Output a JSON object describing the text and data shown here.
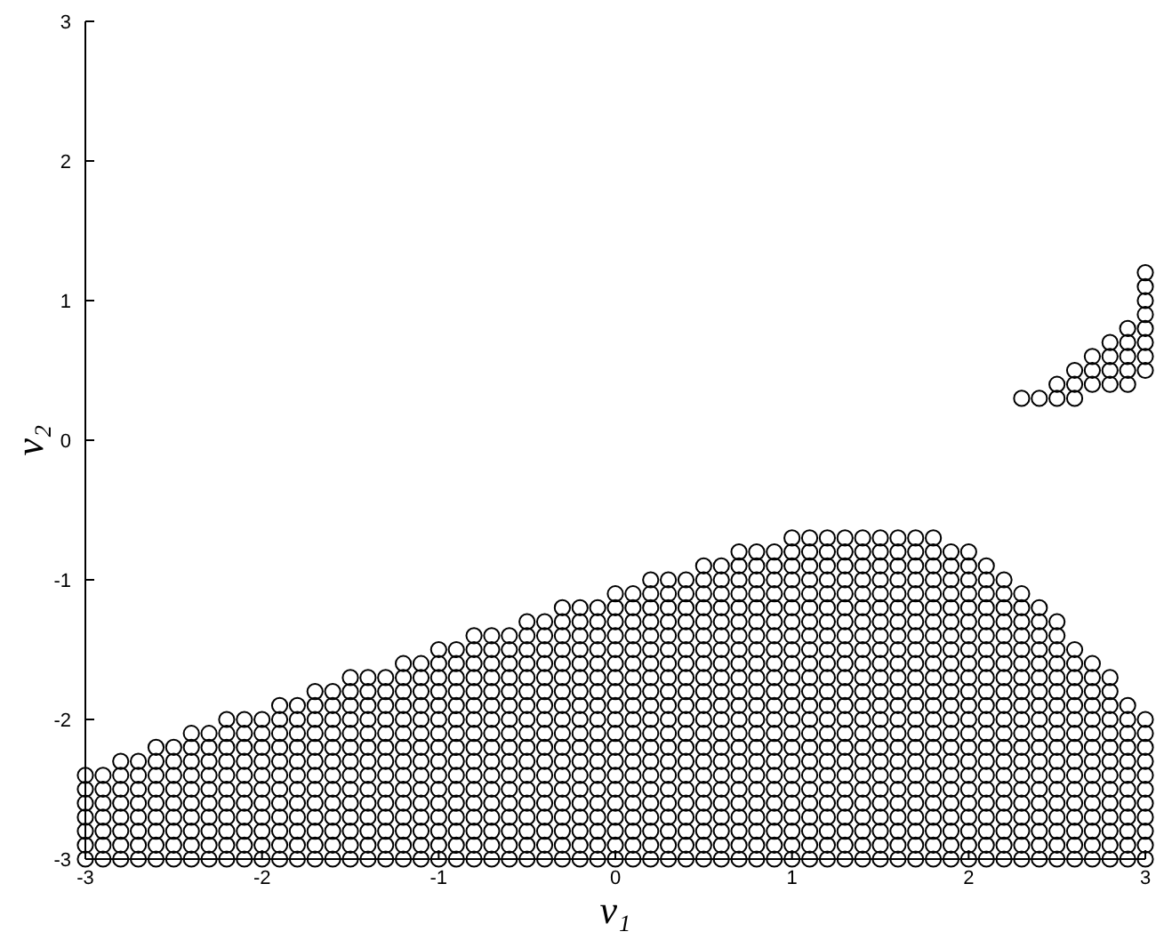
{
  "chart_data": {
    "type": "scatter",
    "xlabel": "v₁",
    "ylabel": "v₂",
    "xlim": [
      -3,
      3
    ],
    "ylim": [
      -3,
      3
    ],
    "xticks": [
      -3,
      -2,
      -1,
      0,
      1,
      2,
      3
    ],
    "yticks": [
      -3,
      -2,
      -1,
      0,
      1,
      2,
      3
    ],
    "marker": "circle",
    "color": "#000000",
    "series": [
      {
        "x": [
          -3,
          -3,
          -3,
          -3,
          -3,
          -3,
          -3
        ],
        "values": [
          -3,
          -2.9,
          -2.8,
          -2.7,
          -2.6,
          -2.5,
          -2.4
        ]
      },
      {
        "x": [
          -2.9,
          -2.9,
          -2.9,
          -2.9,
          -2.9,
          -2.9,
          -2.9
        ],
        "values": [
          -3,
          -2.9,
          -2.8,
          -2.7,
          -2.6,
          -2.5,
          -2.4
        ]
      },
      {
        "x": [
          -2.8,
          -2.8,
          -2.8,
          -2.8,
          -2.8,
          -2.8,
          -2.8,
          -2.8
        ],
        "values": [
          -3,
          -2.9,
          -2.8,
          -2.7,
          -2.6,
          -2.5,
          -2.4,
          -2.3
        ]
      },
      {
        "x": [
          -2.7,
          -2.7,
          -2.7,
          -2.7,
          -2.7,
          -2.7,
          -2.7,
          -2.7
        ],
        "values": [
          -3,
          -2.9,
          -2.8,
          -2.7,
          -2.6,
          -2.5,
          -2.4,
          -2.3
        ]
      },
      {
        "x": [
          -2.6,
          -2.6,
          -2.6,
          -2.6,
          -2.6,
          -2.6,
          -2.6,
          -2.6,
          -2.6
        ],
        "values": [
          -3,
          -2.9,
          -2.8,
          -2.7,
          -2.6,
          -2.5,
          -2.4,
          -2.3,
          -2.2
        ]
      },
      {
        "x": [
          -2.5,
          -2.5,
          -2.5,
          -2.5,
          -2.5,
          -2.5,
          -2.5,
          -2.5,
          -2.5
        ],
        "values": [
          -3,
          -2.9,
          -2.8,
          -2.7,
          -2.6,
          -2.5,
          -2.4,
          -2.3,
          -2.2
        ]
      },
      {
        "x": [
          -2.4,
          -2.4,
          -2.4,
          -2.4,
          -2.4,
          -2.4,
          -2.4,
          -2.4,
          -2.4,
          -2.4
        ],
        "values": [
          -3,
          -2.9,
          -2.8,
          -2.7,
          -2.6,
          -2.5,
          -2.4,
          -2.3,
          -2.2,
          -2.1
        ]
      },
      {
        "x": [
          -2.3,
          -2.3,
          -2.3,
          -2.3,
          -2.3,
          -2.3,
          -2.3,
          -2.3,
          -2.3,
          -2.3
        ],
        "values": [
          -3,
          -2.9,
          -2.8,
          -2.7,
          -2.6,
          -2.5,
          -2.4,
          -2.3,
          -2.2,
          -2.1
        ]
      },
      {
        "x": [
          -2.2,
          -2.2,
          -2.2,
          -2.2,
          -2.2,
          -2.2,
          -2.2,
          -2.2,
          -2.2,
          -2.2,
          -2.2
        ],
        "values": [
          -3,
          -2.9,
          -2.8,
          -2.7,
          -2.6,
          -2.5,
          -2.4,
          -2.3,
          -2.2,
          -2.1,
          -2
        ]
      },
      {
        "x": [
          -2.1,
          -2.1,
          -2.1,
          -2.1,
          -2.1,
          -2.1,
          -2.1,
          -2.1,
          -2.1,
          -2.1,
          -2.1
        ],
        "values": [
          -3,
          -2.9,
          -2.8,
          -2.7,
          -2.6,
          -2.5,
          -2.4,
          -2.3,
          -2.2,
          -2.1,
          -2
        ]
      },
      {
        "x": [
          -2,
          -2,
          -2,
          -2,
          -2,
          -2,
          -2,
          -2,
          -2,
          -2,
          -2
        ],
        "values": [
          -3,
          -2.9,
          -2.8,
          -2.7,
          -2.6,
          -2.5,
          -2.4,
          -2.3,
          -2.2,
          -2.1,
          -2
        ]
      },
      {
        "x": [
          -1.9,
          -1.9,
          -1.9,
          -1.9,
          -1.9,
          -1.9,
          -1.9,
          -1.9,
          -1.9,
          -1.9,
          -1.9,
          -1.9
        ],
        "values": [
          -3,
          -2.9,
          -2.8,
          -2.7,
          -2.6,
          -2.5,
          -2.4,
          -2.3,
          -2.2,
          -2.1,
          -2,
          -1.9
        ]
      },
      {
        "x": [
          -1.8,
          -1.8,
          -1.8,
          -1.8,
          -1.8,
          -1.8,
          -1.8,
          -1.8,
          -1.8,
          -1.8,
          -1.8,
          -1.8
        ],
        "values": [
          -3,
          -2.9,
          -2.8,
          -2.7,
          -2.6,
          -2.5,
          -2.4,
          -2.3,
          -2.2,
          -2.1,
          -2,
          -1.9
        ]
      },
      {
        "x": [
          -1.7,
          -1.7,
          -1.7,
          -1.7,
          -1.7,
          -1.7,
          -1.7,
          -1.7,
          -1.7,
          -1.7,
          -1.7,
          -1.7,
          -1.7
        ],
        "values": [
          -3,
          -2.9,
          -2.8,
          -2.7,
          -2.6,
          -2.5,
          -2.4,
          -2.3,
          -2.2,
          -2.1,
          -2,
          -1.9,
          -1.8
        ]
      },
      {
        "x": [
          -1.6,
          -1.6,
          -1.6,
          -1.6,
          -1.6,
          -1.6,
          -1.6,
          -1.6,
          -1.6,
          -1.6,
          -1.6,
          -1.6,
          -1.6
        ],
        "values": [
          -3,
          -2.9,
          -2.8,
          -2.7,
          -2.6,
          -2.5,
          -2.4,
          -2.3,
          -2.2,
          -2.1,
          -2,
          -1.9,
          -1.8
        ]
      },
      {
        "x": [
          -1.5,
          -1.5,
          -1.5,
          -1.5,
          -1.5,
          -1.5,
          -1.5,
          -1.5,
          -1.5,
          -1.5,
          -1.5,
          -1.5,
          -1.5,
          -1.5
        ],
        "values": [
          -3,
          -2.9,
          -2.8,
          -2.7,
          -2.6,
          -2.5,
          -2.4,
          -2.3,
          -2.2,
          -2.1,
          -2,
          -1.9,
          -1.8,
          -1.7
        ]
      },
      {
        "x": [
          -1.4,
          -1.4,
          -1.4,
          -1.4,
          -1.4,
          -1.4,
          -1.4,
          -1.4,
          -1.4,
          -1.4,
          -1.4,
          -1.4,
          -1.4,
          -1.4
        ],
        "values": [
          -3,
          -2.9,
          -2.8,
          -2.7,
          -2.6,
          -2.5,
          -2.4,
          -2.3,
          -2.2,
          -2.1,
          -2,
          -1.9,
          -1.8,
          -1.7
        ]
      },
      {
        "x": [
          -1.3,
          -1.3,
          -1.3,
          -1.3,
          -1.3,
          -1.3,
          -1.3,
          -1.3,
          -1.3,
          -1.3,
          -1.3,
          -1.3,
          -1.3,
          -1.3
        ],
        "values": [
          -3,
          -2.9,
          -2.8,
          -2.7,
          -2.6,
          -2.5,
          -2.4,
          -2.3,
          -2.2,
          -2.1,
          -2,
          -1.9,
          -1.8,
          -1.7
        ]
      },
      {
        "x": [
          -1.2,
          -1.2,
          -1.2,
          -1.2,
          -1.2,
          -1.2,
          -1.2,
          -1.2,
          -1.2,
          -1.2,
          -1.2,
          -1.2,
          -1.2,
          -1.2,
          -1.2
        ],
        "values": [
          -3,
          -2.9,
          -2.8,
          -2.7,
          -2.6,
          -2.5,
          -2.4,
          -2.3,
          -2.2,
          -2.1,
          -2,
          -1.9,
          -1.8,
          -1.7,
          -1.6
        ]
      },
      {
        "x": [
          -1.1,
          -1.1,
          -1.1,
          -1.1,
          -1.1,
          -1.1,
          -1.1,
          -1.1,
          -1.1,
          -1.1,
          -1.1,
          -1.1,
          -1.1,
          -1.1,
          -1.1
        ],
        "values": [
          -3,
          -2.9,
          -2.8,
          -2.7,
          -2.6,
          -2.5,
          -2.4,
          -2.3,
          -2.2,
          -2.1,
          -2,
          -1.9,
          -1.8,
          -1.7,
          -1.6
        ]
      },
      {
        "x": [
          -1,
          -1,
          -1,
          -1,
          -1,
          -1,
          -1,
          -1,
          -1,
          -1,
          -1,
          -1,
          -1,
          -1,
          -1,
          -1
        ],
        "values": [
          -3,
          -2.9,
          -2.8,
          -2.7,
          -2.6,
          -2.5,
          -2.4,
          -2.3,
          -2.2,
          -2.1,
          -2,
          -1.9,
          -1.8,
          -1.7,
          -1.6,
          -1.5
        ]
      },
      {
        "x": [
          -0.9,
          -0.9,
          -0.9,
          -0.9,
          -0.9,
          -0.9,
          -0.9,
          -0.9,
          -0.9,
          -0.9,
          -0.9,
          -0.9,
          -0.9,
          -0.9,
          -0.9,
          -0.9
        ],
        "values": [
          -3,
          -2.9,
          -2.8,
          -2.7,
          -2.6,
          -2.5,
          -2.4,
          -2.3,
          -2.2,
          -2.1,
          -2,
          -1.9,
          -1.8,
          -1.7,
          -1.6,
          -1.5
        ]
      },
      {
        "x": [
          -0.8,
          -0.8,
          -0.8,
          -0.8,
          -0.8,
          -0.8,
          -0.8,
          -0.8,
          -0.8,
          -0.8,
          -0.8,
          -0.8,
          -0.8,
          -0.8,
          -0.8,
          -0.8,
          -0.8
        ],
        "values": [
          -3,
          -2.9,
          -2.8,
          -2.7,
          -2.6,
          -2.5,
          -2.4,
          -2.3,
          -2.2,
          -2.1,
          -2,
          -1.9,
          -1.8,
          -1.7,
          -1.6,
          -1.5,
          -1.4
        ]
      },
      {
        "x": [
          -0.7,
          -0.7,
          -0.7,
          -0.7,
          -0.7,
          -0.7,
          -0.7,
          -0.7,
          -0.7,
          -0.7,
          -0.7,
          -0.7,
          -0.7,
          -0.7,
          -0.7,
          -0.7,
          -0.7
        ],
        "values": [
          -3,
          -2.9,
          -2.8,
          -2.7,
          -2.6,
          -2.5,
          -2.4,
          -2.3,
          -2.2,
          -2.1,
          -2,
          -1.9,
          -1.8,
          -1.7,
          -1.6,
          -1.5,
          -1.4
        ]
      },
      {
        "x": [
          -0.6,
          -0.6,
          -0.6,
          -0.6,
          -0.6,
          -0.6,
          -0.6,
          -0.6,
          -0.6,
          -0.6,
          -0.6,
          -0.6,
          -0.6,
          -0.6,
          -0.6,
          -0.6,
          -0.6
        ],
        "values": [
          -3,
          -2.9,
          -2.8,
          -2.7,
          -2.6,
          -2.5,
          -2.4,
          -2.3,
          -2.2,
          -2.1,
          -2,
          -1.9,
          -1.8,
          -1.7,
          -1.6,
          -1.5,
          -1.4
        ]
      },
      {
        "x": [
          -0.5,
          -0.5,
          -0.5,
          -0.5,
          -0.5,
          -0.5,
          -0.5,
          -0.5,
          -0.5,
          -0.5,
          -0.5,
          -0.5,
          -0.5,
          -0.5,
          -0.5,
          -0.5,
          -0.5,
          -0.5
        ],
        "values": [
          -3,
          -2.9,
          -2.8,
          -2.7,
          -2.6,
          -2.5,
          -2.4,
          -2.3,
          -2.2,
          -2.1,
          -2,
          -1.9,
          -1.8,
          -1.7,
          -1.6,
          -1.5,
          -1.4,
          -1.3
        ]
      },
      {
        "x": [
          -0.4,
          -0.4,
          -0.4,
          -0.4,
          -0.4,
          -0.4,
          -0.4,
          -0.4,
          -0.4,
          -0.4,
          -0.4,
          -0.4,
          -0.4,
          -0.4,
          -0.4,
          -0.4,
          -0.4,
          -0.4
        ],
        "values": [
          -3,
          -2.9,
          -2.8,
          -2.7,
          -2.6,
          -2.5,
          -2.4,
          -2.3,
          -2.2,
          -2.1,
          -2,
          -1.9,
          -1.8,
          -1.7,
          -1.6,
          -1.5,
          -1.4,
          -1.3
        ]
      },
      {
        "x": [
          -0.3,
          -0.3,
          -0.3,
          -0.3,
          -0.3,
          -0.3,
          -0.3,
          -0.3,
          -0.3,
          -0.3,
          -0.3,
          -0.3,
          -0.3,
          -0.3,
          -0.3,
          -0.3,
          -0.3,
          -0.3,
          -0.3
        ],
        "values": [
          -3,
          -2.9,
          -2.8,
          -2.7,
          -2.6,
          -2.5,
          -2.4,
          -2.3,
          -2.2,
          -2.1,
          -2,
          -1.9,
          -1.8,
          -1.7,
          -1.6,
          -1.5,
          -1.4,
          -1.3,
          -1.2
        ]
      },
      {
        "x": [
          -0.2,
          -0.2,
          -0.2,
          -0.2,
          -0.2,
          -0.2,
          -0.2,
          -0.2,
          -0.2,
          -0.2,
          -0.2,
          -0.2,
          -0.2,
          -0.2,
          -0.2,
          -0.2,
          -0.2,
          -0.2,
          -0.2
        ],
        "values": [
          -3,
          -2.9,
          -2.8,
          -2.7,
          -2.6,
          -2.5,
          -2.4,
          -2.3,
          -2.2,
          -2.1,
          -2,
          -1.9,
          -1.8,
          -1.7,
          -1.6,
          -1.5,
          -1.4,
          -1.3,
          -1.2
        ]
      },
      {
        "x": [
          -0.1,
          -0.1,
          -0.1,
          -0.1,
          -0.1,
          -0.1,
          -0.1,
          -0.1,
          -0.1,
          -0.1,
          -0.1,
          -0.1,
          -0.1,
          -0.1,
          -0.1,
          -0.1,
          -0.1,
          -0.1,
          -0.1
        ],
        "values": [
          -3,
          -2.9,
          -2.8,
          -2.7,
          -2.6,
          -2.5,
          -2.4,
          -2.3,
          -2.2,
          -2.1,
          -2,
          -1.9,
          -1.8,
          -1.7,
          -1.6,
          -1.5,
          -1.4,
          -1.3,
          -1.2
        ]
      },
      {
        "x": [
          0,
          0,
          0,
          0,
          0,
          0,
          0,
          0,
          0,
          0,
          0,
          0,
          0,
          0,
          0,
          0,
          0,
          0,
          0,
          0
        ],
        "values": [
          -3,
          -2.9,
          -2.8,
          -2.7,
          -2.6,
          -2.5,
          -2.4,
          -2.3,
          -2.2,
          -2.1,
          -2,
          -1.9,
          -1.8,
          -1.7,
          -1.6,
          -1.5,
          -1.4,
          -1.3,
          -1.2,
          -1.1
        ]
      },
      {
        "x": [
          0.1,
          0.1,
          0.1,
          0.1,
          0.1,
          0.1,
          0.1,
          0.1,
          0.1,
          0.1,
          0.1,
          0.1,
          0.1,
          0.1,
          0.1,
          0.1,
          0.1,
          0.1,
          0.1,
          0.1
        ],
        "values": [
          -3,
          -2.9,
          -2.8,
          -2.7,
          -2.6,
          -2.5,
          -2.4,
          -2.3,
          -2.2,
          -2.1,
          -2,
          -1.9,
          -1.8,
          -1.7,
          -1.6,
          -1.5,
          -1.4,
          -1.3,
          -1.2,
          -1.1
        ]
      },
      {
        "x": [
          0.2,
          0.2,
          0.2,
          0.2,
          0.2,
          0.2,
          0.2,
          0.2,
          0.2,
          0.2,
          0.2,
          0.2,
          0.2,
          0.2,
          0.2,
          0.2,
          0.2,
          0.2,
          0.2,
          0.2,
          0.2
        ],
        "values": [
          -3,
          -2.9,
          -2.8,
          -2.7,
          -2.6,
          -2.5,
          -2.4,
          -2.3,
          -2.2,
          -2.1,
          -2,
          -1.9,
          -1.8,
          -1.7,
          -1.6,
          -1.5,
          -1.4,
          -1.3,
          -1.2,
          -1.1,
          -1
        ]
      },
      {
        "x": [
          0.3,
          0.3,
          0.3,
          0.3,
          0.3,
          0.3,
          0.3,
          0.3,
          0.3,
          0.3,
          0.3,
          0.3,
          0.3,
          0.3,
          0.3,
          0.3,
          0.3,
          0.3,
          0.3,
          0.3,
          0.3
        ],
        "values": [
          -3,
          -2.9,
          -2.8,
          -2.7,
          -2.6,
          -2.5,
          -2.4,
          -2.3,
          -2.2,
          -2.1,
          -2,
          -1.9,
          -1.8,
          -1.7,
          -1.6,
          -1.5,
          -1.4,
          -1.3,
          -1.2,
          -1.1,
          -1
        ]
      },
      {
        "x": [
          0.4,
          0.4,
          0.4,
          0.4,
          0.4,
          0.4,
          0.4,
          0.4,
          0.4,
          0.4,
          0.4,
          0.4,
          0.4,
          0.4,
          0.4,
          0.4,
          0.4,
          0.4,
          0.4,
          0.4,
          0.4
        ],
        "values": [
          -3,
          -2.9,
          -2.8,
          -2.7,
          -2.6,
          -2.5,
          -2.4,
          -2.3,
          -2.2,
          -2.1,
          -2,
          -1.9,
          -1.8,
          -1.7,
          -1.6,
          -1.5,
          -1.4,
          -1.3,
          -1.2,
          -1.1,
          -1
        ]
      },
      {
        "x": [
          0.5,
          0.5,
          0.5,
          0.5,
          0.5,
          0.5,
          0.5,
          0.5,
          0.5,
          0.5,
          0.5,
          0.5,
          0.5,
          0.5,
          0.5,
          0.5,
          0.5,
          0.5,
          0.5,
          0.5,
          0.5,
          0.5
        ],
        "values": [
          -3,
          -2.9,
          -2.8,
          -2.7,
          -2.6,
          -2.5,
          -2.4,
          -2.3,
          -2.2,
          -2.1,
          -2,
          -1.9,
          -1.8,
          -1.7,
          -1.6,
          -1.5,
          -1.4,
          -1.3,
          -1.2,
          -1.1,
          -1,
          -0.9
        ]
      },
      {
        "x": [
          0.6,
          0.6,
          0.6,
          0.6,
          0.6,
          0.6,
          0.6,
          0.6,
          0.6,
          0.6,
          0.6,
          0.6,
          0.6,
          0.6,
          0.6,
          0.6,
          0.6,
          0.6,
          0.6,
          0.6,
          0.6,
          0.6
        ],
        "values": [
          -3,
          -2.9,
          -2.8,
          -2.7,
          -2.6,
          -2.5,
          -2.4,
          -2.3,
          -2.2,
          -2.1,
          -2,
          -1.9,
          -1.8,
          -1.7,
          -1.6,
          -1.5,
          -1.4,
          -1.3,
          -1.2,
          -1.1,
          -1,
          -0.9
        ]
      },
      {
        "x": [
          0.7,
          0.7,
          0.7,
          0.7,
          0.7,
          0.7,
          0.7,
          0.7,
          0.7,
          0.7,
          0.7,
          0.7,
          0.7,
          0.7,
          0.7,
          0.7,
          0.7,
          0.7,
          0.7,
          0.7,
          0.7,
          0.7,
          0.7
        ],
        "values": [
          -3,
          -2.9,
          -2.8,
          -2.7,
          -2.6,
          -2.5,
          -2.4,
          -2.3,
          -2.2,
          -2.1,
          -2,
          -1.9,
          -1.8,
          -1.7,
          -1.6,
          -1.5,
          -1.4,
          -1.3,
          -1.2,
          -1.1,
          -1,
          -0.9,
          -0.8
        ]
      },
      {
        "x": [
          0.8,
          0.8,
          0.8,
          0.8,
          0.8,
          0.8,
          0.8,
          0.8,
          0.8,
          0.8,
          0.8,
          0.8,
          0.8,
          0.8,
          0.8,
          0.8,
          0.8,
          0.8,
          0.8,
          0.8,
          0.8,
          0.8,
          0.8
        ],
        "values": [
          -3,
          -2.9,
          -2.8,
          -2.7,
          -2.6,
          -2.5,
          -2.4,
          -2.3,
          -2.2,
          -2.1,
          -2,
          -1.9,
          -1.8,
          -1.7,
          -1.6,
          -1.5,
          -1.4,
          -1.3,
          -1.2,
          -1.1,
          -1,
          -0.9,
          -0.8
        ]
      },
      {
        "x": [
          0.9,
          0.9,
          0.9,
          0.9,
          0.9,
          0.9,
          0.9,
          0.9,
          0.9,
          0.9,
          0.9,
          0.9,
          0.9,
          0.9,
          0.9,
          0.9,
          0.9,
          0.9,
          0.9,
          0.9,
          0.9,
          0.9,
          0.9
        ],
        "values": [
          -3,
          -2.9,
          -2.8,
          -2.7,
          -2.6,
          -2.5,
          -2.4,
          -2.3,
          -2.2,
          -2.1,
          -2,
          -1.9,
          -1.8,
          -1.7,
          -1.6,
          -1.5,
          -1.4,
          -1.3,
          -1.2,
          -1.1,
          -1,
          -0.9,
          -0.8
        ]
      },
      {
        "x": [
          1,
          1,
          1,
          1,
          1,
          1,
          1,
          1,
          1,
          1,
          1,
          1,
          1,
          1,
          1,
          1,
          1,
          1,
          1,
          1,
          1,
          1,
          1,
          1
        ],
        "values": [
          -3,
          -2.9,
          -2.8,
          -2.7,
          -2.6,
          -2.5,
          -2.4,
          -2.3,
          -2.2,
          -2.1,
          -2,
          -1.9,
          -1.8,
          -1.7,
          -1.6,
          -1.5,
          -1.4,
          -1.3,
          -1.2,
          -1.1,
          -1,
          -0.9,
          -0.8,
          -0.7
        ]
      },
      {
        "x": [
          1.1,
          1.1,
          1.1,
          1.1,
          1.1,
          1.1,
          1.1,
          1.1,
          1.1,
          1.1,
          1.1,
          1.1,
          1.1,
          1.1,
          1.1,
          1.1,
          1.1,
          1.1,
          1.1,
          1.1,
          1.1,
          1.1,
          1.1,
          1.1
        ],
        "values": [
          -3,
          -2.9,
          -2.8,
          -2.7,
          -2.6,
          -2.5,
          -2.4,
          -2.3,
          -2.2,
          -2.1,
          -2,
          -1.9,
          -1.8,
          -1.7,
          -1.6,
          -1.5,
          -1.4,
          -1.3,
          -1.2,
          -1.1,
          -1,
          -0.9,
          -0.8,
          -0.7
        ]
      },
      {
        "x": [
          1.2,
          1.2,
          1.2,
          1.2,
          1.2,
          1.2,
          1.2,
          1.2,
          1.2,
          1.2,
          1.2,
          1.2,
          1.2,
          1.2,
          1.2,
          1.2,
          1.2,
          1.2,
          1.2,
          1.2,
          1.2,
          1.2,
          1.2,
          1.2
        ],
        "values": [
          -3,
          -2.9,
          -2.8,
          -2.7,
          -2.6,
          -2.5,
          -2.4,
          -2.3,
          -2.2,
          -2.1,
          -2,
          -1.9,
          -1.8,
          -1.7,
          -1.6,
          -1.5,
          -1.4,
          -1.3,
          -1.2,
          -1.1,
          -1,
          -0.9,
          -0.8,
          -0.7
        ]
      },
      {
        "x": [
          1.3,
          1.3,
          1.3,
          1.3,
          1.3,
          1.3,
          1.3,
          1.3,
          1.3,
          1.3,
          1.3,
          1.3,
          1.3,
          1.3,
          1.3,
          1.3,
          1.3,
          1.3,
          1.3,
          1.3,
          1.3,
          1.3,
          1.3,
          1.3
        ],
        "values": [
          -3,
          -2.9,
          -2.8,
          -2.7,
          -2.6,
          -2.5,
          -2.4,
          -2.3,
          -2.2,
          -2.1,
          -2,
          -1.9,
          -1.8,
          -1.7,
          -1.6,
          -1.5,
          -1.4,
          -1.3,
          -1.2,
          -1.1,
          -1,
          -0.9,
          -0.8,
          -0.7
        ]
      },
      {
        "x": [
          1.4,
          1.4,
          1.4,
          1.4,
          1.4,
          1.4,
          1.4,
          1.4,
          1.4,
          1.4,
          1.4,
          1.4,
          1.4,
          1.4,
          1.4,
          1.4,
          1.4,
          1.4,
          1.4,
          1.4,
          1.4,
          1.4,
          1.4,
          1.4
        ],
        "values": [
          -3,
          -2.9,
          -2.8,
          -2.7,
          -2.6,
          -2.5,
          -2.4,
          -2.3,
          -2.2,
          -2.1,
          -2,
          -1.9,
          -1.8,
          -1.7,
          -1.6,
          -1.5,
          -1.4,
          -1.3,
          -1.2,
          -1.1,
          -1,
          -0.9,
          -0.8,
          -0.7
        ]
      },
      {
        "x": [
          1.5,
          1.5,
          1.5,
          1.5,
          1.5,
          1.5,
          1.5,
          1.5,
          1.5,
          1.5,
          1.5,
          1.5,
          1.5,
          1.5,
          1.5,
          1.5,
          1.5,
          1.5,
          1.5,
          1.5,
          1.5,
          1.5,
          1.5,
          1.5
        ],
        "values": [
          -3,
          -2.9,
          -2.8,
          -2.7,
          -2.6,
          -2.5,
          -2.4,
          -2.3,
          -2.2,
          -2.1,
          -2,
          -1.9,
          -1.8,
          -1.7,
          -1.6,
          -1.5,
          -1.4,
          -1.3,
          -1.2,
          -1.1,
          -1,
          -0.9,
          -0.8,
          -0.7
        ]
      },
      {
        "x": [
          1.6,
          1.6,
          1.6,
          1.6,
          1.6,
          1.6,
          1.6,
          1.6,
          1.6,
          1.6,
          1.6,
          1.6,
          1.6,
          1.6,
          1.6,
          1.6,
          1.6,
          1.6,
          1.6,
          1.6,
          1.6,
          1.6,
          1.6,
          1.6
        ],
        "values": [
          -3,
          -2.9,
          -2.8,
          -2.7,
          -2.6,
          -2.5,
          -2.4,
          -2.3,
          -2.2,
          -2.1,
          -2,
          -1.9,
          -1.8,
          -1.7,
          -1.6,
          -1.5,
          -1.4,
          -1.3,
          -1.2,
          -1.1,
          -1,
          -0.9,
          -0.8,
          -0.7
        ]
      },
      {
        "x": [
          1.7,
          1.7,
          1.7,
          1.7,
          1.7,
          1.7,
          1.7,
          1.7,
          1.7,
          1.7,
          1.7,
          1.7,
          1.7,
          1.7,
          1.7,
          1.7,
          1.7,
          1.7,
          1.7,
          1.7,
          1.7,
          1.7,
          1.7,
          1.7
        ],
        "values": [
          -3,
          -2.9,
          -2.8,
          -2.7,
          -2.6,
          -2.5,
          -2.4,
          -2.3,
          -2.2,
          -2.1,
          -2,
          -1.9,
          -1.8,
          -1.7,
          -1.6,
          -1.5,
          -1.4,
          -1.3,
          -1.2,
          -1.1,
          -1,
          -0.9,
          -0.8,
          -0.7
        ]
      },
      {
        "x": [
          1.8,
          1.8,
          1.8,
          1.8,
          1.8,
          1.8,
          1.8,
          1.8,
          1.8,
          1.8,
          1.8,
          1.8,
          1.8,
          1.8,
          1.8,
          1.8,
          1.8,
          1.8,
          1.8,
          1.8,
          1.8,
          1.8,
          1.8,
          1.8
        ],
        "values": [
          -3,
          -2.9,
          -2.8,
          -2.7,
          -2.6,
          -2.5,
          -2.4,
          -2.3,
          -2.2,
          -2.1,
          -2,
          -1.9,
          -1.8,
          -1.7,
          -1.6,
          -1.5,
          -1.4,
          -1.3,
          -1.2,
          -1.1,
          -1,
          -0.9,
          -0.8,
          -0.7
        ]
      },
      {
        "x": [
          1.9,
          1.9,
          1.9,
          1.9,
          1.9,
          1.9,
          1.9,
          1.9,
          1.9,
          1.9,
          1.9,
          1.9,
          1.9,
          1.9,
          1.9,
          1.9,
          1.9,
          1.9,
          1.9,
          1.9,
          1.9,
          1.9,
          1.9
        ],
        "values": [
          -3,
          -2.9,
          -2.8,
          -2.7,
          -2.6,
          -2.5,
          -2.4,
          -2.3,
          -2.2,
          -2.1,
          -2,
          -1.9,
          -1.8,
          -1.7,
          -1.6,
          -1.5,
          -1.4,
          -1.3,
          -1.2,
          -1.1,
          -1,
          -0.9,
          -0.8
        ]
      },
      {
        "x": [
          2,
          2,
          2,
          2,
          2,
          2,
          2,
          2,
          2,
          2,
          2,
          2,
          2,
          2,
          2,
          2,
          2,
          2,
          2,
          2,
          2,
          2,
          2
        ],
        "values": [
          -3,
          -2.9,
          -2.8,
          -2.7,
          -2.6,
          -2.5,
          -2.4,
          -2.3,
          -2.2,
          -2.1,
          -2,
          -1.9,
          -1.8,
          -1.7,
          -1.6,
          -1.5,
          -1.4,
          -1.3,
          -1.2,
          -1.1,
          -1,
          -0.9,
          -0.8
        ]
      },
      {
        "x": [
          2.1,
          2.1,
          2.1,
          2.1,
          2.1,
          2.1,
          2.1,
          2.1,
          2.1,
          2.1,
          2.1,
          2.1,
          2.1,
          2.1,
          2.1,
          2.1,
          2.1,
          2.1,
          2.1,
          2.1,
          2.1,
          2.1
        ],
        "values": [
          -3,
          -2.9,
          -2.8,
          -2.7,
          -2.6,
          -2.5,
          -2.4,
          -2.3,
          -2.2,
          -2.1,
          -2,
          -1.9,
          -1.8,
          -1.7,
          -1.6,
          -1.5,
          -1.4,
          -1.3,
          -1.2,
          -1.1,
          -1,
          -0.9
        ]
      },
      {
        "x": [
          2.2,
          2.2,
          2.2,
          2.2,
          2.2,
          2.2,
          2.2,
          2.2,
          2.2,
          2.2,
          2.2,
          2.2,
          2.2,
          2.2,
          2.2,
          2.2,
          2.2,
          2.2,
          2.2,
          2.2,
          2.2
        ],
        "values": [
          -3,
          -2.9,
          -2.8,
          -2.7,
          -2.6,
          -2.5,
          -2.4,
          -2.3,
          -2.2,
          -2.1,
          -2,
          -1.9,
          -1.8,
          -1.7,
          -1.6,
          -1.5,
          -1.4,
          -1.3,
          -1.2,
          -1.1,
          -1
        ]
      },
      {
        "x": [
          2.3,
          2.3,
          2.3,
          2.3,
          2.3,
          2.3,
          2.3,
          2.3,
          2.3,
          2.3,
          2.3,
          2.3,
          2.3,
          2.3,
          2.3,
          2.3,
          2.3,
          2.3,
          2.3,
          2.3,
          2.3
        ],
        "values": [
          -3,
          -2.9,
          -2.8,
          -2.7,
          -2.6,
          -2.5,
          -2.4,
          -2.3,
          -2.2,
          -2.1,
          -2,
          -1.9,
          -1.8,
          -1.7,
          -1.6,
          -1.5,
          -1.4,
          -1.3,
          -1.2,
          -1.1,
          0.3
        ]
      },
      {
        "x": [
          2.4,
          2.4,
          2.4,
          2.4,
          2.4,
          2.4,
          2.4,
          2.4,
          2.4,
          2.4,
          2.4,
          2.4,
          2.4,
          2.4,
          2.4,
          2.4,
          2.4,
          2.4,
          2.4,
          2.4
        ],
        "values": [
          -3,
          -2.9,
          -2.8,
          -2.7,
          -2.6,
          -2.5,
          -2.4,
          -2.3,
          -2.2,
          -2.1,
          -2,
          -1.9,
          -1.8,
          -1.7,
          -1.6,
          -1.5,
          -1.4,
          -1.3,
          -1.2,
          0.3
        ]
      },
      {
        "x": [
          2.5,
          2.5,
          2.5,
          2.5,
          2.5,
          2.5,
          2.5,
          2.5,
          2.5,
          2.5,
          2.5,
          2.5,
          2.5,
          2.5,
          2.5,
          2.5,
          2.5,
          2.5,
          2.5,
          2.5
        ],
        "values": [
          -3,
          -2.9,
          -2.8,
          -2.7,
          -2.6,
          -2.5,
          -2.4,
          -2.3,
          -2.2,
          -2.1,
          -2,
          -1.9,
          -1.8,
          -1.7,
          -1.6,
          -1.5,
          -1.4,
          -1.3,
          0.3,
          0.4
        ]
      },
      {
        "x": [
          2.6,
          2.6,
          2.6,
          2.6,
          2.6,
          2.6,
          2.6,
          2.6,
          2.6,
          2.6,
          2.6,
          2.6,
          2.6,
          2.6,
          2.6,
          2.6,
          2.6,
          2.6,
          2.6
        ],
        "values": [
          -3,
          -2.9,
          -2.8,
          -2.7,
          -2.6,
          -2.5,
          -2.4,
          -2.3,
          -2.2,
          -2.1,
          -2,
          -1.9,
          -1.8,
          -1.7,
          -1.6,
          -1.5,
          0.3,
          0.4,
          0.5
        ]
      },
      {
        "x": [
          2.7,
          2.7,
          2.7,
          2.7,
          2.7,
          2.7,
          2.7,
          2.7,
          2.7,
          2.7,
          2.7,
          2.7,
          2.7,
          2.7,
          2.7,
          2.7,
          2.7,
          2.7
        ],
        "values": [
          -3,
          -2.9,
          -2.8,
          -2.7,
          -2.6,
          -2.5,
          -2.4,
          -2.3,
          -2.2,
          -2.1,
          -2,
          -1.9,
          -1.8,
          -1.7,
          -1.6,
          0.4,
          0.5,
          0.6
        ]
      },
      {
        "x": [
          2.8,
          2.8,
          2.8,
          2.8,
          2.8,
          2.8,
          2.8,
          2.8,
          2.8,
          2.8,
          2.8,
          2.8,
          2.8,
          2.8,
          2.8,
          2.8,
          2.8,
          2.8
        ],
        "values": [
          -3,
          -2.9,
          -2.8,
          -2.7,
          -2.6,
          -2.5,
          -2.4,
          -2.3,
          -2.2,
          -2.1,
          -2,
          -1.9,
          -1.8,
          -1.7,
          0.4,
          0.5,
          0.6,
          0.7
        ]
      },
      {
        "x": [
          2.9,
          2.9,
          2.9,
          2.9,
          2.9,
          2.9,
          2.9,
          2.9,
          2.9,
          2.9,
          2.9,
          2.9,
          2.9,
          2.9,
          2.9,
          2.9,
          2.9
        ],
        "values": [
          -3,
          -2.9,
          -2.8,
          -2.7,
          -2.6,
          -2.5,
          -2.4,
          -2.3,
          -2.2,
          -2.1,
          -2,
          -1.9,
          0.4,
          0.5,
          0.6,
          0.7,
          0.8
        ]
      },
      {
        "x": [
          3,
          3,
          3,
          3,
          3,
          3,
          3,
          3,
          3,
          3,
          3,
          3,
          3,
          3,
          3,
          3,
          3,
          3,
          3
        ],
        "values": [
          -3,
          -2.9,
          -2.8,
          -2.7,
          -2.6,
          -2.5,
          -2.4,
          -2.3,
          -2.2,
          -2.1,
          -2,
          0.5,
          0.6,
          0.7,
          0.8,
          0.9,
          1,
          1.1,
          1.2
        ]
      }
    ]
  }
}
